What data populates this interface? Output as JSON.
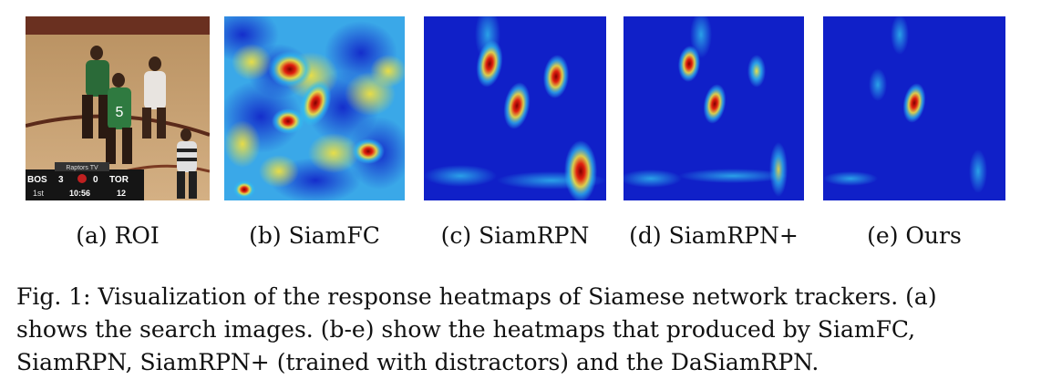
{
  "panels": [
    {
      "id": "a",
      "label": "(a) ROI",
      "content": "basketball-frame",
      "scoreboard": {
        "team_left": "BOS",
        "team_right": "TOR",
        "score_left": "3",
        "score_right": "0",
        "period": "1st",
        "clock": "10:56",
        "shot_clock": "12",
        "network": "Raptors TV"
      }
    },
    {
      "id": "b",
      "label": "(b) SiamFC",
      "content": "heatmap"
    },
    {
      "id": "c",
      "label": "(c) SiamRPN",
      "content": "heatmap"
    },
    {
      "id": "d",
      "label": "(d) SiamRPN+",
      "content": "heatmap"
    },
    {
      "id": "e",
      "label": "(e) Ours",
      "content": "heatmap"
    }
  ],
  "caption": {
    "line1": "Fig. 1: Visualization of the response heatmaps of Siamese network trackers. (a)",
    "line2": "shows the search images. (b-e) show the heatmaps that produced by SiamFC,",
    "line3": "SiamRPN, SiamRPN+ (trained with distractors) and the DaSiamRPN."
  },
  "colors": {
    "heat_low": "#1020c8",
    "heat_mid": "#30c0f0",
    "heat_warm": "#f0e040",
    "heat_hot": "#e02010",
    "heat_peak": "#800000",
    "court": "#c8a070"
  }
}
